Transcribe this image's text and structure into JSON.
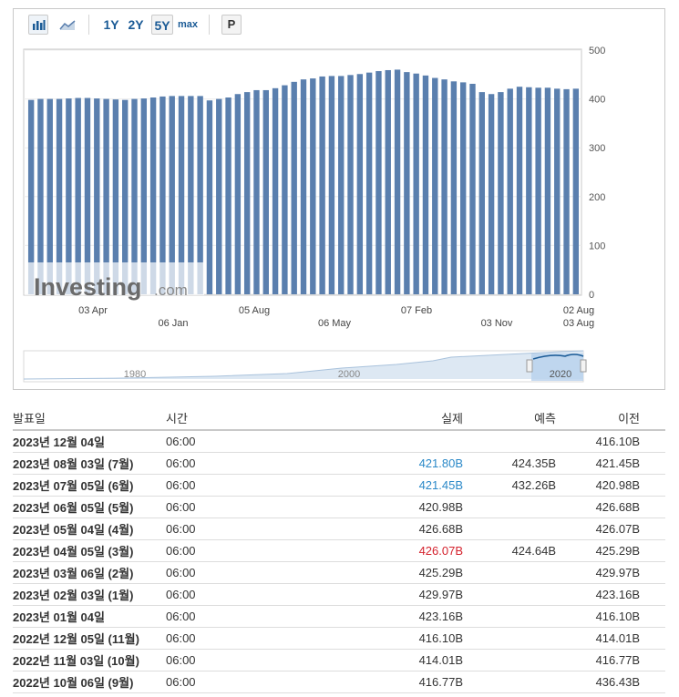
{
  "toolbar": {
    "buttons": [
      "1Y",
      "2Y",
      "5Y",
      "max"
    ],
    "active": "5Y",
    "p_label": "P"
  },
  "chart_data": {
    "type": "bar",
    "yaxis_ticks": [
      "500",
      "400",
      "300",
      "200",
      "100",
      "0"
    ],
    "ylim": [
      0,
      500
    ],
    "xaxis_labels_row1": [
      "03 Apr",
      "05 Aug",
      "07 Feb",
      "02 Aug"
    ],
    "xaxis_labels_row2": [
      "06 Jan",
      "06 May",
      "03 Nov",
      "03 Aug"
    ],
    "values": [
      398,
      400,
      400,
      400,
      401,
      402,
      402,
      401,
      400,
      399,
      398,
      400,
      401,
      403,
      405,
      406,
      406,
      406,
      406,
      397,
      400,
      403,
      410,
      414,
      418,
      418,
      422,
      428,
      435,
      440,
      442,
      446,
      447,
      447,
      449,
      451,
      454,
      457,
      459,
      460,
      455,
      452,
      448,
      443,
      440,
      436,
      434,
      431,
      414,
      410,
      414,
      421,
      425,
      424,
      423,
      423,
      421,
      420,
      421
    ],
    "navigator_labels": [
      "1980",
      "2000",
      "2020"
    ],
    "watermark": "Investing.com"
  },
  "table": {
    "headers": {
      "date": "발표일",
      "time": "시간",
      "actual": "실제",
      "forecast": "예측",
      "previous": "이전"
    },
    "rows": [
      {
        "date": "2023년 12월 04일",
        "time": "06:00",
        "actual": "",
        "forecast": "",
        "previous": "416.10B",
        "color": ""
      },
      {
        "date": "2023년 08월 03일 (7월)",
        "time": "06:00",
        "actual": "421.80B",
        "forecast": "424.35B",
        "previous": "421.45B",
        "color": "pos"
      },
      {
        "date": "2023년 07월 05일 (6월)",
        "time": "06:00",
        "actual": "421.45B",
        "forecast": "432.26B",
        "previous": "420.98B",
        "color": "pos"
      },
      {
        "date": "2023년 06월 05일 (5월)",
        "time": "06:00",
        "actual": "420.98B",
        "forecast": "",
        "previous": "426.68B",
        "color": ""
      },
      {
        "date": "2023년 05월 04일 (4월)",
        "time": "06:00",
        "actual": "426.68B",
        "forecast": "",
        "previous": "426.07B",
        "color": ""
      },
      {
        "date": "2023년 04월 05일 (3월)",
        "time": "06:00",
        "actual": "426.07B",
        "forecast": "424.64B",
        "previous": "425.29B",
        "color": "neg"
      },
      {
        "date": "2023년 03월 06일 (2월)",
        "time": "06:00",
        "actual": "425.29B",
        "forecast": "",
        "previous": "429.97B",
        "color": ""
      },
      {
        "date": "2023년 02월 03일 (1월)",
        "time": "06:00",
        "actual": "429.97B",
        "forecast": "",
        "previous": "423.16B",
        "color": ""
      },
      {
        "date": "2023년 01월 04일",
        "time": "06:00",
        "actual": "423.16B",
        "forecast": "",
        "previous": "416.10B",
        "color": ""
      },
      {
        "date": "2022년 12월 05일 (11월)",
        "time": "06:00",
        "actual": "416.10B",
        "forecast": "",
        "previous": "414.01B",
        "color": ""
      },
      {
        "date": "2022년 11월 03일 (10월)",
        "time": "06:00",
        "actual": "414.01B",
        "forecast": "",
        "previous": "416.77B",
        "color": ""
      },
      {
        "date": "2022년 10월 06일 (9월)",
        "time": "06:00",
        "actual": "416.77B",
        "forecast": "",
        "previous": "436.43B",
        "color": ""
      }
    ]
  },
  "colors": {
    "bar": "#5a7fae",
    "positive": "#2b89c8",
    "negative": "#d4222d"
  }
}
